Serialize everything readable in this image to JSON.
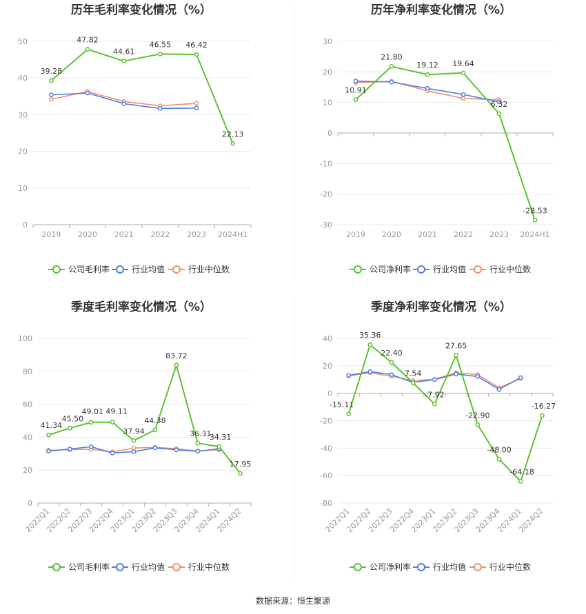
{
  "source_note": "数据来源：恒生聚源",
  "legend_symbols": {
    "company": "green-circle-line-icon",
    "avg": "blue-circle-line-icon",
    "median": "orange-circle-line-icon"
  },
  "chart_data": [
    {
      "id": "annual-gross",
      "type": "line",
      "title": "历年毛利率变化情况（%）",
      "categories": [
        "2019",
        "2020",
        "2021",
        "2022",
        "2023",
        "2024H1"
      ],
      "ylim": [
        0,
        50
      ],
      "yticks": [
        0,
        10,
        20,
        30,
        40,
        50
      ],
      "rotate_labels": false,
      "legend_position": "bottom",
      "series": [
        {
          "name": "公司毛利率",
          "color": "#5cc130",
          "labeled": true,
          "values": [
            39.28,
            47.82,
            44.61,
            46.55,
            46.42,
            22.13
          ],
          "labels": [
            "39.28",
            "47.82",
            "44.61",
            "46.55",
            "46.42",
            "22.13"
          ]
        },
        {
          "name": "行业均值",
          "color": "#4f7de8",
          "labeled": false,
          "values": [
            35.4,
            35.9,
            33.0,
            31.7,
            31.8,
            null
          ]
        },
        {
          "name": "行业中位数",
          "color": "#f08e6c",
          "labeled": false,
          "values": [
            34.2,
            36.3,
            33.6,
            32.4,
            33.1,
            null
          ]
        }
      ]
    },
    {
      "id": "annual-net",
      "type": "line",
      "title": "历年净利率变化情况（%）",
      "categories": [
        "2019",
        "2020",
        "2021",
        "2022",
        "2023",
        "2024H1"
      ],
      "ylim": [
        -30,
        30
      ],
      "yticks": [
        -30,
        -20,
        -10,
        0,
        10,
        20,
        30
      ],
      "rotate_labels": false,
      "legend_position": "bottom",
      "series": [
        {
          "name": "公司净利率",
          "color": "#5cc130",
          "labeled": true,
          "values": [
            10.91,
            21.8,
            19.12,
            19.64,
            6.32,
            -28.53
          ],
          "labels": [
            "10.91",
            "21.80",
            "19.12",
            "19.64",
            "6.32",
            "-28.53"
          ]
        },
        {
          "name": "行业均值",
          "color": "#4f7de8",
          "labeled": false,
          "values": [
            17.0,
            16.7,
            14.6,
            12.6,
            10.2,
            null
          ]
        },
        {
          "name": "行业中位数",
          "color": "#f08e6c",
          "labeled": false,
          "values": [
            16.5,
            16.9,
            13.8,
            11.3,
            10.9,
            null
          ]
        }
      ]
    },
    {
      "id": "quarterly-gross",
      "type": "line",
      "title": "季度毛利率变化情况（%）",
      "categories": [
        "2022Q1",
        "2022Q2",
        "2022Q3",
        "2022Q4",
        "2023Q1",
        "2023Q2",
        "2023Q3",
        "2023Q4",
        "2024Q1",
        "2024Q2"
      ],
      "ylim": [
        0,
        100
      ],
      "yticks": [
        0,
        20,
        40,
        60,
        80,
        100
      ],
      "rotate_labels": true,
      "legend_position": "bottom",
      "series": [
        {
          "name": "公司毛利率",
          "color": "#5cc130",
          "labeled": true,
          "values": [
            41.34,
            45.5,
            49.01,
            49.11,
            37.94,
            44.38,
            83.72,
            36.31,
            34.31,
            17.95
          ],
          "labels": [
            "41.34",
            "45.50",
            "49.01",
            "49.11",
            "37.94",
            "44.38",
            "83.72",
            "36.31",
            "34.31",
            "17.95"
          ]
        },
        {
          "name": "行业均值",
          "color": "#4f7de8",
          "labeled": false,
          "values": [
            31.5,
            32.8,
            34.2,
            30.4,
            31.2,
            33.5,
            32.3,
            31.4,
            33.0,
            null
          ]
        },
        {
          "name": "行业中位数",
          "color": "#f08e6c",
          "labeled": false,
          "values": [
            32.0,
            32.4,
            32.7,
            31.0,
            33.4,
            33.8,
            33.0,
            31.6,
            32.4,
            null
          ]
        }
      ]
    },
    {
      "id": "quarterly-net",
      "type": "line",
      "title": "季度净利率变化情况（%）",
      "categories": [
        "2022Q1",
        "2022Q2",
        "2022Q3",
        "2022Q4",
        "2023Q1",
        "2023Q2",
        "2023Q3",
        "2023Q4",
        "2024Q1",
        "2024Q2"
      ],
      "ylim": [
        -80,
        40
      ],
      "yticks": [
        -80,
        -60,
        -40,
        -20,
        0,
        20,
        40
      ],
      "rotate_labels": true,
      "legend_position": "bottom",
      "series": [
        {
          "name": "公司净利率",
          "color": "#5cc130",
          "labeled": true,
          "values": [
            -15.11,
            35.36,
            22.4,
            7.54,
            -7.92,
            27.65,
            -22.9,
            -48.0,
            -64.18,
            -16.27
          ],
          "labels": [
            "-15.11",
            "35.36",
            "22.40",
            "7.54",
            "-7.92",
            "27.65",
            "-22.90",
            "-48.00",
            "-64.18",
            "-16.27"
          ]
        },
        {
          "name": "行业均值",
          "color": "#4f7de8",
          "labeled": false,
          "values": [
            13.0,
            15.8,
            13.6,
            7.8,
            10.0,
            14.0,
            12.2,
            2.8,
            11.4,
            null
          ]
        },
        {
          "name": "行业中位数",
          "color": "#f08e6c",
          "labeled": false,
          "values": [
            12.6,
            15.0,
            12.4,
            9.2,
            10.2,
            15.0,
            13.6,
            4.0,
            10.8,
            null
          ]
        }
      ]
    }
  ]
}
